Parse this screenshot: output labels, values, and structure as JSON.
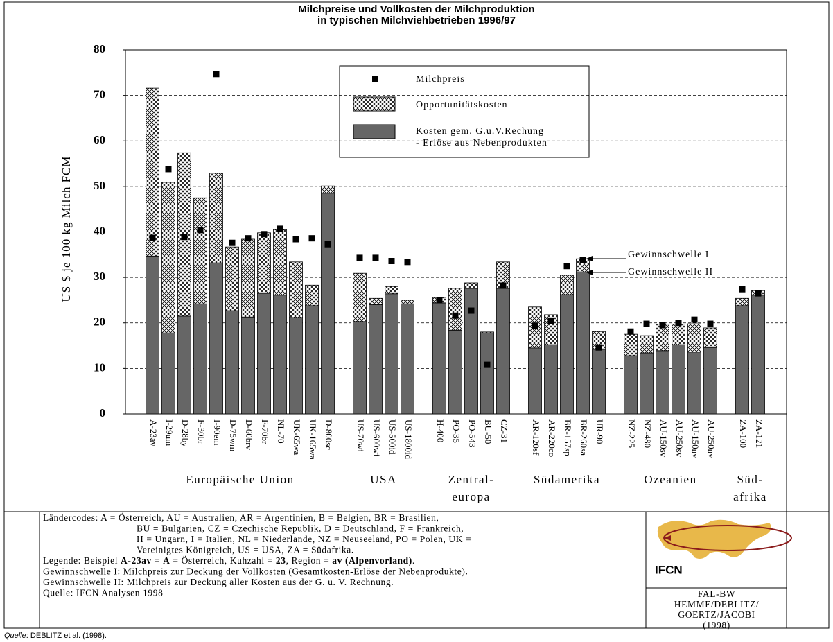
{
  "chart_data": {
    "type": "bar",
    "title": [
      "Milchpreise und Vollkosten der Milchproduktion",
      "in typischen Milchviehbetrieben 1996/97"
    ],
    "y_label": "US $ je 100 kg Milch FCM",
    "ylim": [
      0,
      80
    ],
    "yticks": [
      0,
      10,
      20,
      30,
      40,
      50,
      60,
      70,
      80
    ],
    "grid": true,
    "groups": [
      {
        "label": [
          "Europäische Union"
        ],
        "categories": [
          "A-23av",
          "I-29um",
          "D-28by",
          "F-30br",
          "I-90em",
          "D-75wm",
          "D-60brv",
          "F-70br",
          "NL-70",
          "UK-65wa",
          "UK-165wa",
          "D-800sc"
        ]
      },
      {
        "label": [
          "USA"
        ],
        "categories": [
          "US-70wi",
          "US-600wi",
          "US-500id",
          "US-1800id"
        ]
      },
      {
        "label": [
          "Zentral-",
          "europa"
        ],
        "categories": [
          "H-400",
          "PO-35",
          "PO-543",
          "BU-50",
          "CZ-31"
        ]
      },
      {
        "label": [
          "Südamerika"
        ],
        "categories": [
          "AR-120sf",
          "AR-220co",
          "BR-157sp",
          "BR-260sa",
          "UR-90"
        ]
      },
      {
        "label": [
          "Ozeanien"
        ],
        "categories": [
          "NZ-225",
          "NZ-480",
          "AU-150sv",
          "AU-250sv",
          "AU-150nv",
          "AU-250nv"
        ]
      },
      {
        "label": [
          "Süd-",
          "afrika"
        ],
        "categories": [
          "ZA-100",
          "ZA-121"
        ]
      }
    ],
    "series": [
      {
        "name": [
          "Milchpreis"
        ],
        "mark": "square",
        "color": "#000000",
        "values": [
          38.7,
          53.8,
          38.9,
          40.4,
          74.7,
          37.6,
          38.6,
          39.5,
          40.7,
          38.4,
          38.6,
          37.3,
          34.3,
          34.3,
          33.6,
          33.4,
          25.0,
          21.6,
          22.7,
          10.8,
          28.2,
          19.4,
          20.4,
          32.5,
          33.8,
          14.6,
          18.1,
          19.8,
          19.5,
          20.0,
          20.7,
          19.8,
          27.4,
          26.5
        ]
      },
      {
        "name": [
          "Opportunitätskosten"
        ],
        "mark": "hatch",
        "color": "#000000",
        "values": [
          36.9,
          33.1,
          35.9,
          23.3,
          19.7,
          14.0,
          17.1,
          13.3,
          14.4,
          12.2,
          4.5,
          1.6,
          10.6,
          1.4,
          1.6,
          0.8,
          1.2,
          9.2,
          1.2,
          0.2,
          5.8,
          9.0,
          6.6,
          4.3,
          2.9,
          3.9,
          4.7,
          3.8,
          5.8,
          4.5,
          6.2,
          4.3,
          1.6,
          1.0
        ]
      },
      {
        "name": [
          "Kosten gem. G.u.V.Rechung",
          "- Erlöse aus Nebenprodukten"
        ],
        "mark": "bar",
        "color": "#666666",
        "values": [
          34.7,
          17.8,
          21.5,
          24.2,
          33.2,
          22.7,
          21.3,
          26.5,
          26.1,
          21.2,
          23.8,
          48.5,
          20.3,
          24.0,
          26.4,
          24.2,
          24.4,
          18.4,
          27.6,
          17.8,
          27.6,
          14.5,
          15.2,
          26.2,
          31.2,
          14.2,
          12.8,
          13.4,
          13.9,
          15.2,
          13.6,
          14.6,
          23.8,
          26.1
        ]
      }
    ],
    "annotations": [
      "Gewinnschwelle I",
      "Gewinnschwelle II"
    ]
  },
  "footer": {
    "country_codes": [
      "Ländercodes: A = Österreich, AU = Australien, AR = Argentinien, B = Belgien, BR = Brasilien,",
      "BU = Bulgarien,  CZ = Czechische Republik, D = Deutschland, F = Frankreich,",
      "H = Ungarn, I = Italien, NL = Niederlande, NZ = Neuseeland, PO = Polen, UK =",
      "Vereinigtes Königreich, US = USA, ZA = Südafrika."
    ],
    "legend_example": [
      {
        "text": "Legende: Beispiel "
      },
      {
        "text": "A-23av",
        "bold": true
      },
      {
        "text": " = "
      },
      {
        "text": "A",
        "bold": true
      },
      {
        "text": " = Österreich, Kuhzahl = "
      },
      {
        "text": "23",
        "bold": true
      },
      {
        "text": ", Region = "
      },
      {
        "text": "av (Alpenvorland)",
        "bold": true
      },
      {
        "text": "."
      }
    ],
    "notes": [
      "Gewinnschwelle I: Milchpreis zur Deckung der Vollkosten (Gesamtkosten-Erlöse der Nebenprodukte).",
      "Gewinnschwelle II: Milchpreis zur Deckung aller Kosten aus der G. u. V. Rechnung.",
      "Quelle: IFCN Analysen 1998"
    ],
    "logo": "IFCN",
    "credits": [
      "FAL-BW",
      "HEMME/DEBLITZ/",
      "GOERTZ/JACOBI",
      "(1998)"
    ]
  },
  "source": {
    "label": "Quelle",
    "text": ": DEBLITZ et al. (1998)."
  }
}
